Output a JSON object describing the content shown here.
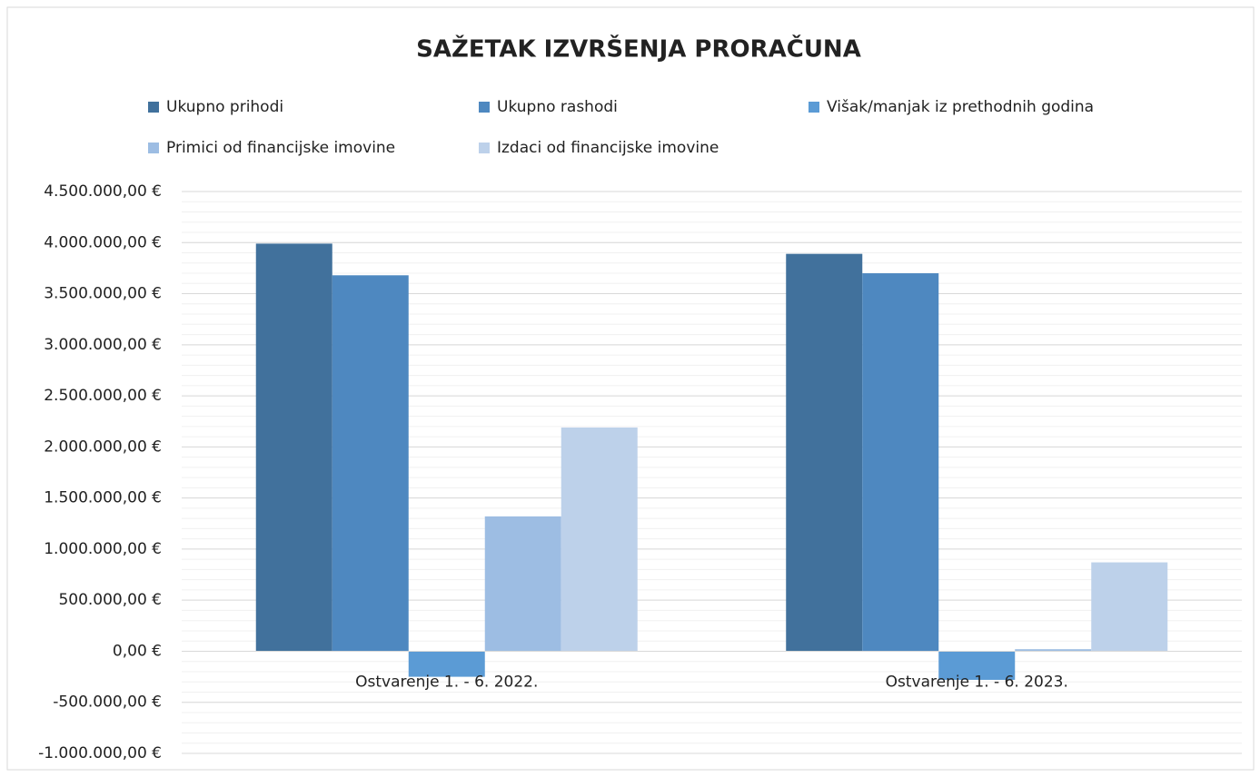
{
  "chart_data": {
    "type": "bar",
    "title": "SAŽETAK IZVRŠENJA PRORAČUNA",
    "categories": [
      "Ostvarenje 1. - 6. 2022.",
      "Ostvarenje 1. - 6. 2023."
    ],
    "series": [
      {
        "name": "Ukupno prihodi",
        "color": "#41719c",
        "values": [
          3990000,
          3890000
        ]
      },
      {
        "name": "Ukupno rashodi",
        "color": "#4e88c0",
        "values": [
          3680000,
          3700000
        ]
      },
      {
        "name": "Višak/manjak iz prethodnih godina",
        "color": "#5b9bd5",
        "values": [
          -250000,
          -280000
        ]
      },
      {
        "name": "Primici od financijske imovine",
        "color": "#9dbde3",
        "values": [
          1320000,
          20000
        ]
      },
      {
        "name": "Izdaci od financijske imovine",
        "color": "#bdd1ea",
        "values": [
          2190000,
          870000
        ]
      }
    ],
    "ylim": [
      -1000000,
      4500000
    ],
    "yticks": [
      {
        "value": -1000000,
        "label": "-1.000.000,00 €"
      },
      {
        "value": -500000,
        "label": "-500.000,00 €"
      },
      {
        "value": 0,
        "label": "0,00 €"
      },
      {
        "value": 500000,
        "label": "500.000,00 €"
      },
      {
        "value": 1000000,
        "label": "1.000.000,00 €"
      },
      {
        "value": 1500000,
        "label": "1.500.000,00 €"
      },
      {
        "value": 2000000,
        "label": "2.000.000,00 €"
      },
      {
        "value": 2500000,
        "label": "2.500.000,00 €"
      },
      {
        "value": 3000000,
        "label": "3.000.000,00 €"
      },
      {
        "value": 3500000,
        "label": "3.500.000,00 €"
      },
      {
        "value": 4000000,
        "label": "4.000.000,00 €"
      },
      {
        "value": 4500000,
        "label": "4.500.000,00 €"
      }
    ],
    "grid": true
  }
}
